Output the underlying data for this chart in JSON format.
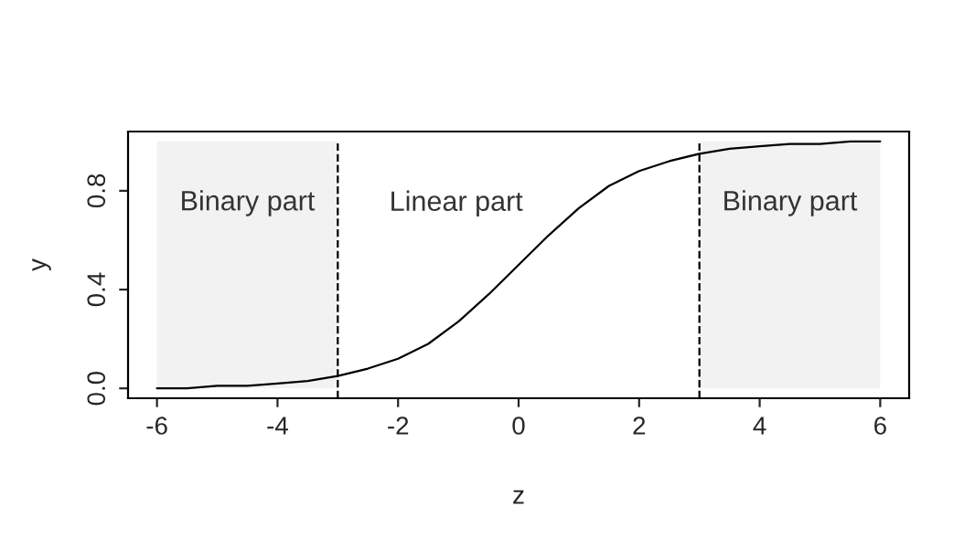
{
  "chart_data": {
    "type": "line",
    "xlabel": "z",
    "ylabel": "y",
    "x": [
      -6,
      -5.5,
      -5,
      -4.5,
      -4,
      -3.5,
      -3,
      -2.5,
      -2,
      -1.5,
      -1,
      -0.5,
      0,
      0.5,
      1,
      1.5,
      2,
      2.5,
      3,
      3.5,
      4,
      4.5,
      5,
      5.5,
      6
    ],
    "series": [
      {
        "color": "#000000",
        "values": [
          0.0,
          0.0,
          0.01,
          0.01,
          0.02,
          0.03,
          0.05,
          0.08,
          0.12,
          0.18,
          0.27,
          0.38,
          0.5,
          0.62,
          0.73,
          0.82,
          0.88,
          0.92,
          0.95,
          0.97,
          0.98,
          0.99,
          0.99,
          1.0,
          1.0
        ]
      }
    ],
    "xlim": [
      -6.48,
      6.48
    ],
    "ylim": [
      -0.04,
      1.04
    ],
    "xticks": [
      -6,
      -4,
      -2,
      0,
      2,
      4,
      6
    ],
    "yticks": [
      {
        "value": 0,
        "label": "0.0"
      },
      {
        "value": 0.4,
        "label": "0.4"
      },
      {
        "value": 0.8,
        "label": "0.8"
      }
    ],
    "bands": [
      {
        "axis": "x",
        "from": -6,
        "to": -3,
        "label": "Binary part",
        "color": "#f2f2f2"
      },
      {
        "axis": "x",
        "from": 3,
        "to": 6,
        "label": "Binary part",
        "color": "#f2f2f2"
      }
    ],
    "ref_lines": [
      {
        "axis": "x",
        "value": -3,
        "line_style": "dashed"
      },
      {
        "axis": "x",
        "value": 3,
        "line_style": "dashed"
      }
    ],
    "annotations": [
      "Linear part"
    ],
    "grid": false
  }
}
